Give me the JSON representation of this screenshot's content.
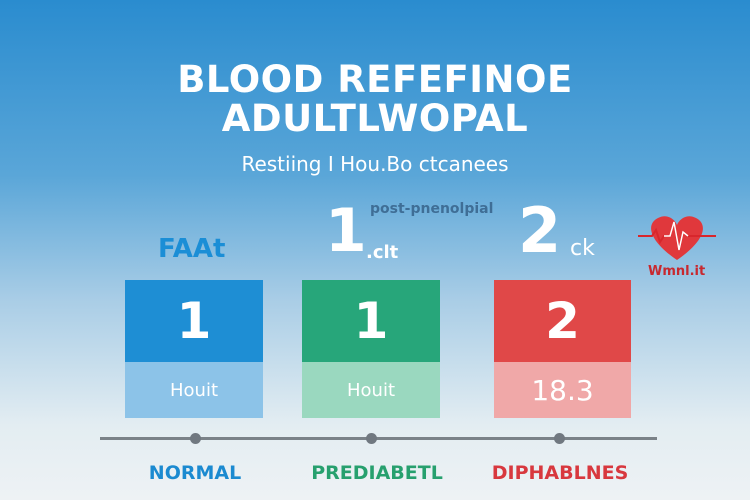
{
  "title": {
    "line1": "BLOOD REFEFINOE",
    "line2": "ADULTLWOPAL"
  },
  "subtitle": "Restiing  I Hou.Bo ctcanees",
  "headers": {
    "post_label": "post-pnenolpial",
    "fasting": "FAAt",
    "big1": "1",
    "big1_unit": ".clt",
    "big2": "2",
    "big2_unit": "ck",
    "heart_label": "Wmnl.it"
  },
  "cards": [
    {
      "value": "1",
      "sub": "Houit",
      "color": "#1e8ed4",
      "light": "#8cc3e8"
    },
    {
      "value": "1",
      "sub": "Houit",
      "color": "#27a67a",
      "light": "#9ad8bf"
    },
    {
      "value": "2",
      "sub": "18.3",
      "color": "#e04848",
      "light": "#f0a8a8"
    }
  ],
  "categories": [
    {
      "label": "NORMAL",
      "color": "#1b8ad0"
    },
    {
      "label": "PREDIABETL",
      "color": "#27a06e"
    },
    {
      "label": "DIPHABLNES",
      "color": "#d8383e"
    }
  ],
  "icons": {
    "heart": "heart-pulse-icon"
  }
}
